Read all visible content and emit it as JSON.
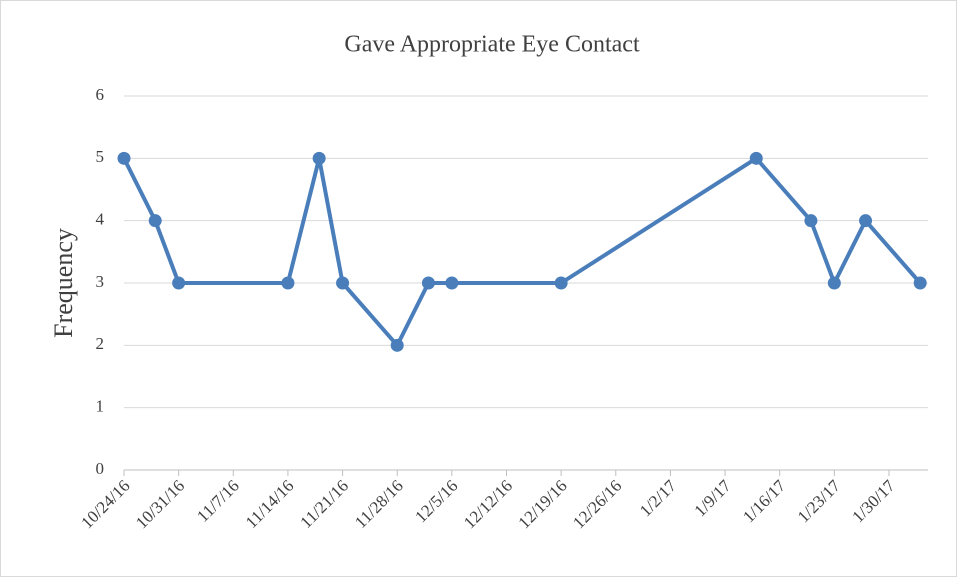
{
  "chart_data": {
    "type": "line",
    "title": "Gave Appropriate Eye Contact",
    "y_label": "Frequency",
    "x": [
      "10/24/16",
      "10/28/16",
      "10/31/16",
      "11/14/16",
      "11/18/16",
      "11/21/16",
      "11/28/16",
      "12/2/16",
      "12/5/16",
      "12/19/16",
      "1/13/17",
      "1/20/17",
      "1/23/17",
      "1/27/17",
      "2/3/17"
    ],
    "series": [
      {
        "name": "Frequency",
        "color": "#4a7ebb",
        "values": [
          5,
          4,
          3,
          3,
          5,
          3,
          2,
          3,
          3,
          3,
          5,
          4,
          3,
          4,
          3
        ]
      }
    ],
    "xlim": [
      "10/24/16",
      "2/4/17"
    ],
    "xticks": [
      "10/24/16",
      "10/31/16",
      "11/7/16",
      "11/14/16",
      "11/21/16",
      "11/28/16",
      "12/5/16",
      "12/12/16",
      "12/19/16",
      "12/26/16",
      "1/2/17",
      "1/9/17",
      "1/16/17",
      "1/23/17",
      "1/30/17"
    ],
    "ylim": [
      0,
      6
    ],
    "yticks": [
      0,
      1,
      2,
      3,
      4,
      5,
      6
    ],
    "grid": true
  }
}
